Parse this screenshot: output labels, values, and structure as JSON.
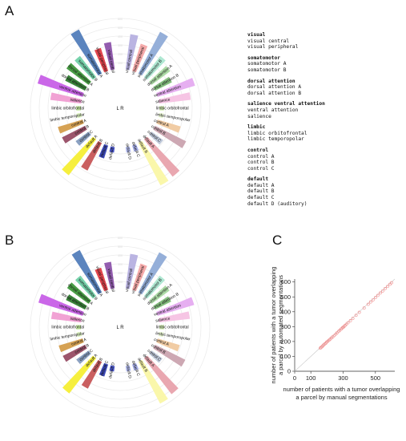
{
  "panels": {
    "a_label": "A",
    "b_label": "B",
    "c_label": "C",
    "lr_label": "L R"
  },
  "legend": [
    {
      "title": "visual",
      "items": [
        "visual central",
        "visual peripheral"
      ]
    },
    {
      "title": "somatomotor",
      "items": [
        "somatomotor A",
        "somatomotor B"
      ]
    },
    {
      "title": "dorsal attention",
      "items": [
        "dorsal attention A",
        "dorsal attention B"
      ]
    },
    {
      "title": "salience ventral attention",
      "items": [
        "ventral attention",
        "salience"
      ]
    },
    {
      "title": "limbic",
      "items": [
        "limbic orbitofrontal",
        "limbic temporopolar"
      ]
    },
    {
      "title": "control",
      "items": [
        "control A",
        "control B",
        "control C"
      ]
    },
    {
      "title": "default",
      "items": [
        "default A",
        "default B",
        "default C",
        "default D (auditory)"
      ]
    }
  ],
  "chart_data": [
    {
      "type": "bar",
      "polar": true,
      "panel": "A",
      "rlim": [
        0,
        600
      ],
      "radial_ticks": [
        100,
        200,
        300,
        400,
        500,
        600
      ],
      "segments": [
        {
          "name": "visual central",
          "hemi": "R",
          "value": 430,
          "color": "#b4aee0"
        },
        {
          "name": "visual peripheral",
          "hemi": "R",
          "value": 350,
          "color": "#f4a3a3"
        },
        {
          "name": "somatomotor A",
          "hemi": "R",
          "value": 560,
          "color": "#8ca8d6"
        },
        {
          "name": "somatomotor B",
          "hemi": "R",
          "value": 330,
          "color": "#a9e6cf"
        },
        {
          "name": "dorsal attention A",
          "hemi": "R",
          "value": 290,
          "color": "#a6d9a0"
        },
        {
          "name": "dorsal attention B",
          "hemi": "R",
          "value": 240,
          "color": "#79b874"
        },
        {
          "name": "ventral attention",
          "hemi": "R",
          "value": 470,
          "color": "#e4a8f0"
        },
        {
          "name": "salience",
          "hemi": "R",
          "value": 390,
          "color": "#f5c0e2"
        },
        {
          "name": "limbic orbitofrontal",
          "hemi": "R",
          "value": 80,
          "color": "#d4efb2"
        },
        {
          "name": "limbic temporopolar",
          "hemi": "R",
          "value": 80,
          "color": "#e6f5cf"
        },
        {
          "name": "control A",
          "hemi": "R",
          "value": 300,
          "color": "#f0c89c"
        },
        {
          "name": "control B",
          "hemi": "R",
          "value": 420,
          "color": "#c9a1ac"
        },
        {
          "name": "control C",
          "hemi": "R",
          "value": 190,
          "color": "#b9c3d6"
        },
        {
          "name": "default A",
          "hemi": "R",
          "value": 560,
          "color": "#e79fa9"
        },
        {
          "name": "default B",
          "hemi": "R",
          "value": 570,
          "color": "#faf6a3"
        },
        {
          "name": "default C",
          "hemi": "R",
          "value": 100,
          "color": "#a0a8e6"
        },
        {
          "name": "default D",
          "hemi": "R",
          "value": 90,
          "color": "#b0b8ee"
        },
        {
          "name": "visual central",
          "hemi": "L",
          "value": 340,
          "color": "#8a4fa8"
        },
        {
          "name": "visual peripheral",
          "hemi": "L",
          "value": 300,
          "color": "#e0363f"
        },
        {
          "name": "somatomotor A",
          "hemi": "L",
          "value": 590,
          "color": "#4d79b8"
        },
        {
          "name": "somatomotor B",
          "hemi": "L",
          "value": 330,
          "color": "#6ccfa5"
        },
        {
          "name": "dorsal attention A",
          "hemi": "L",
          "value": 340,
          "color": "#3a9535"
        },
        {
          "name": "dorsal attention B",
          "hemi": "L",
          "value": 280,
          "color": "#2a7a2a"
        },
        {
          "name": "ventral attention",
          "hemi": "L",
          "value": 560,
          "color": "#c55ae6"
        },
        {
          "name": "salience",
          "hemi": "L",
          "value": 380,
          "color": "#f09ad0"
        },
        {
          "name": "limbic orbitofrontal",
          "hemi": "L",
          "value": 80,
          "color": "#bfe69a"
        },
        {
          "name": "limbic temporopolar",
          "hemi": "L",
          "value": 80,
          "color": "#d8f0bc"
        },
        {
          "name": "control A",
          "hemi": "L",
          "value": 320,
          "color": "#d39a45"
        },
        {
          "name": "control B",
          "hemi": "L",
          "value": 320,
          "color": "#94475f"
        },
        {
          "name": "control C",
          "hemi": "L",
          "value": 210,
          "color": "#8199bd"
        },
        {
          "name": "default A",
          "hemi": "L",
          "value": 540,
          "color": "#f5ee2e"
        },
        {
          "name": "default B",
          "hemi": "L",
          "value": 380,
          "color": "#c65153"
        },
        {
          "name": "default C",
          "hemi": "L",
          "value": 180,
          "color": "#2b3ab2"
        },
        {
          "name": "default D",
          "hemi": "L",
          "value": 90,
          "color": "#3a46c2"
        }
      ]
    },
    {
      "type": "bar",
      "polar": true,
      "panel": "B",
      "rlim": [
        0,
        600
      ],
      "radial_ticks": [
        100,
        200,
        300,
        400,
        500,
        600
      ],
      "segments": [
        {
          "name": "visual central",
          "hemi": "R",
          "value": 420,
          "color": "#b4aee0"
        },
        {
          "name": "visual peripheral",
          "hemi": "R",
          "value": 340,
          "color": "#f4a3a3"
        },
        {
          "name": "somatomotor A",
          "hemi": "R",
          "value": 540,
          "color": "#8ca8d6"
        },
        {
          "name": "somatomotor B",
          "hemi": "R",
          "value": 320,
          "color": "#a9e6cf"
        },
        {
          "name": "dorsal attention A",
          "hemi": "R",
          "value": 280,
          "color": "#a6d9a0"
        },
        {
          "name": "dorsal attention B",
          "hemi": "R",
          "value": 230,
          "color": "#79b874"
        },
        {
          "name": "ventral attention",
          "hemi": "R",
          "value": 460,
          "color": "#e4a8f0"
        },
        {
          "name": "salience",
          "hemi": "R",
          "value": 380,
          "color": "#f5c0e2"
        },
        {
          "name": "limbic orbitofrontal",
          "hemi": "R",
          "value": 80,
          "color": "#d4efb2"
        },
        {
          "name": "limbic temporopolar",
          "hemi": "R",
          "value": 80,
          "color": "#e6f5cf"
        },
        {
          "name": "control A",
          "hemi": "R",
          "value": 290,
          "color": "#f0c89c"
        },
        {
          "name": "control B",
          "hemi": "R",
          "value": 410,
          "color": "#c9a1ac"
        },
        {
          "name": "control C",
          "hemi": "R",
          "value": 180,
          "color": "#b9c3d6"
        },
        {
          "name": "default A",
          "hemi": "R",
          "value": 540,
          "color": "#e79fa9"
        },
        {
          "name": "default B",
          "hemi": "R",
          "value": 560,
          "color": "#faf6a3"
        },
        {
          "name": "default C",
          "hemi": "R",
          "value": 100,
          "color": "#a0a8e6"
        },
        {
          "name": "default D",
          "hemi": "R",
          "value": 90,
          "color": "#b0b8ee"
        },
        {
          "name": "visual central",
          "hemi": "L",
          "value": 330,
          "color": "#8a4fa8"
        },
        {
          "name": "visual peripheral",
          "hemi": "L",
          "value": 290,
          "color": "#e0363f"
        },
        {
          "name": "somatomotor A",
          "hemi": "L",
          "value": 570,
          "color": "#4d79b8"
        },
        {
          "name": "somatomotor B",
          "hemi": "L",
          "value": 320,
          "color": "#6ccfa5"
        },
        {
          "name": "dorsal attention A",
          "hemi": "L",
          "value": 330,
          "color": "#3a9535"
        },
        {
          "name": "dorsal attention B",
          "hemi": "L",
          "value": 270,
          "color": "#2a7a2a"
        },
        {
          "name": "ventral attention",
          "hemi": "L",
          "value": 550,
          "color": "#c55ae6"
        },
        {
          "name": "salience",
          "hemi": "L",
          "value": 370,
          "color": "#f09ad0"
        },
        {
          "name": "limbic orbitofrontal",
          "hemi": "L",
          "value": 80,
          "color": "#bfe69a"
        },
        {
          "name": "limbic temporopolar",
          "hemi": "L",
          "value": 80,
          "color": "#d8f0bc"
        },
        {
          "name": "control A",
          "hemi": "L",
          "value": 310,
          "color": "#d39a45"
        },
        {
          "name": "control B",
          "hemi": "L",
          "value": 310,
          "color": "#94475f"
        },
        {
          "name": "control C",
          "hemi": "L",
          "value": 200,
          "color": "#8199bd"
        },
        {
          "name": "default A",
          "hemi": "L",
          "value": 530,
          "color": "#f5ee2e"
        },
        {
          "name": "default B",
          "hemi": "L",
          "value": 370,
          "color": "#c65153"
        },
        {
          "name": "default C",
          "hemi": "L",
          "value": 170,
          "color": "#2b3ab2"
        },
        {
          "name": "default D",
          "hemi": "L",
          "value": 90,
          "color": "#3a46c2"
        }
      ]
    },
    {
      "type": "scatter",
      "panel": "C",
      "xlabel": "number of patients with a tumor overlapping a parcel by manual segmentations",
      "ylabel": "number of patients with a tumor overlapping a parcel by automated segmentations",
      "xlim": [
        0,
        620
      ],
      "ylim": [
        0,
        620
      ],
      "xticks": [
        0,
        100,
        300,
        500
      ],
      "yticks": [
        0,
        100,
        200,
        300,
        400,
        500,
        600
      ],
      "identity_line": true,
      "color": "#f08a8a",
      "points": [
        [
          158,
          155
        ],
        [
          163,
          160
        ],
        [
          170,
          165
        ],
        [
          175,
          172
        ],
        [
          180,
          178
        ],
        [
          186,
          183
        ],
        [
          192,
          188
        ],
        [
          198,
          196
        ],
        [
          205,
          202
        ],
        [
          212,
          208
        ],
        [
          220,
          216
        ],
        [
          228,
          224
        ],
        [
          236,
          232
        ],
        [
          245,
          240
        ],
        [
          255,
          250
        ],
        [
          262,
          258
        ],
        [
          272,
          268
        ],
        [
          280,
          276
        ],
        [
          288,
          284
        ],
        [
          296,
          292
        ],
        [
          300,
          296
        ],
        [
          305,
          300
        ],
        [
          312,
          308
        ],
        [
          320,
          316
        ],
        [
          330,
          326
        ],
        [
          345,
          340
        ],
        [
          360,
          355
        ],
        [
          380,
          376
        ],
        [
          400,
          396
        ],
        [
          430,
          425
        ],
        [
          455,
          450
        ],
        [
          470,
          466
        ],
        [
          485,
          480
        ],
        [
          500,
          495
        ],
        [
          515,
          510
        ],
        [
          530,
          526
        ],
        [
          545,
          540
        ],
        [
          560,
          556
        ],
        [
          575,
          570
        ],
        [
          590,
          585
        ],
        [
          600,
          595
        ]
      ]
    }
  ]
}
